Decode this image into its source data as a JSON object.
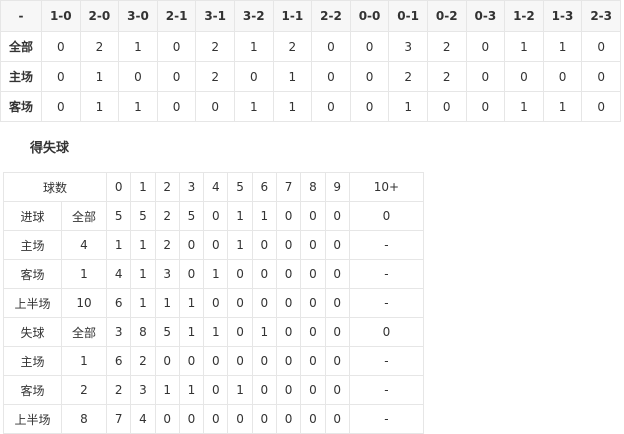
{
  "score_table": {
    "headers": [
      "-",
      "1-0",
      "2-0",
      "3-0",
      "2-1",
      "3-1",
      "3-2",
      "1-1",
      "2-2",
      "0-0",
      "0-1",
      "0-2",
      "0-3",
      "1-2",
      "1-3",
      "2-3"
    ],
    "rows": [
      {
        "label": "全部",
        "values": [
          "0",
          "2",
          "1",
          "0",
          "2",
          "1",
          "2",
          "0",
          "0",
          "3",
          "2",
          "0",
          "1",
          "1",
          "0"
        ]
      },
      {
        "label": "主场",
        "values": [
          "0",
          "1",
          "0",
          "0",
          "2",
          "0",
          "1",
          "0",
          "0",
          "2",
          "2",
          "0",
          "0",
          "0",
          "0"
        ]
      },
      {
        "label": "客场",
        "values": [
          "0",
          "1",
          "1",
          "0",
          "0",
          "1",
          "1",
          "0",
          "0",
          "1",
          "0",
          "0",
          "1",
          "1",
          "0"
        ]
      }
    ]
  },
  "goals_section": {
    "title": "得失球"
  },
  "goals_table": {
    "header_label": "球数",
    "headers": [
      "0",
      "1",
      "2",
      "3",
      "4",
      "5",
      "6",
      "7",
      "8",
      "9",
      "10+"
    ],
    "rows": [
      {
        "a": "进球",
        "b": "全部",
        "values": [
          "5",
          "5",
          "2",
          "5",
          "0",
          "1",
          "1",
          "0",
          "0",
          "0",
          "0"
        ]
      },
      {
        "a": "主场",
        "b": "4",
        "values": [
          "1",
          "1",
          "2",
          "0",
          "0",
          "1",
          "0",
          "0",
          "0",
          "0",
          "-"
        ]
      },
      {
        "a": "客场",
        "b": "1",
        "values": [
          "4",
          "1",
          "3",
          "0",
          "1",
          "0",
          "0",
          "0",
          "0",
          "0",
          "-"
        ]
      },
      {
        "a": "上半场",
        "b": "10",
        "values": [
          "6",
          "1",
          "1",
          "1",
          "0",
          "0",
          "0",
          "0",
          "0",
          "0",
          "-"
        ]
      },
      {
        "a": "失球",
        "b": "全部",
        "values": [
          "3",
          "8",
          "5",
          "1",
          "1",
          "0",
          "1",
          "0",
          "0",
          "0",
          "0"
        ]
      },
      {
        "a": "主场",
        "b": "1",
        "values": [
          "6",
          "2",
          "0",
          "0",
          "0",
          "0",
          "0",
          "0",
          "0",
          "0",
          "-"
        ]
      },
      {
        "a": "客场",
        "b": "2",
        "values": [
          "2",
          "3",
          "1",
          "1",
          "0",
          "1",
          "0",
          "0",
          "0",
          "0",
          "-"
        ]
      },
      {
        "a": "上半场",
        "b": "8",
        "values": [
          "7",
          "4",
          "0",
          "0",
          "0",
          "0",
          "0",
          "0",
          "0",
          "0",
          "-"
        ]
      }
    ]
  }
}
